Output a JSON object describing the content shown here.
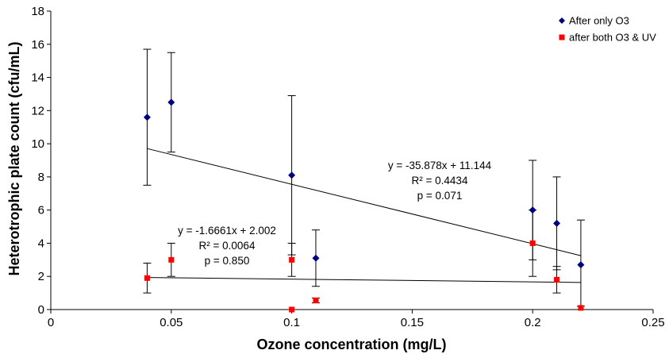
{
  "chart_data": {
    "type": "scatter",
    "xlabel": "Ozone concentration (mg/L)",
    "ylabel": "Heterotrophic plate count (cfu/mL)",
    "xlim": [
      0,
      0.25
    ],
    "ylim": [
      0,
      18
    ],
    "x_ticks": [
      "0",
      "0.05",
      "0.1",
      "0.15",
      "0.2",
      "0.25"
    ],
    "y_ticks": [
      "0",
      "2",
      "4",
      "6",
      "8",
      "10",
      "12",
      "14",
      "16",
      "18"
    ],
    "grid": false,
    "legend_position": "top-right",
    "series": [
      {
        "name": "After only O3",
        "marker": "diamond",
        "color": "#00007f",
        "points": [
          {
            "x": 0.04,
            "y": 11.6,
            "err_low": 7.5,
            "err_high": 15.7
          },
          {
            "x": 0.05,
            "y": 12.5,
            "err_low": 9.5,
            "err_high": 15.5
          },
          {
            "x": 0.1,
            "y": 8.1,
            "err_low": 3.3,
            "err_high": 12.9
          },
          {
            "x": 0.11,
            "y": 3.1,
            "err_low": 1.4,
            "err_high": 4.8
          },
          {
            "x": 0.2,
            "y": 6.0,
            "err_low": 3.0,
            "err_high": 9.0
          },
          {
            "x": 0.21,
            "y": 5.2,
            "err_low": 2.4,
            "err_high": 8.0
          },
          {
            "x": 0.22,
            "y": 2.7,
            "err_low": 0.0,
            "err_high": 5.4
          }
        ],
        "trendline": {
          "slope": -35.878,
          "intercept": 11.144,
          "x_range": [
            0.04,
            0.22
          ]
        },
        "annotation": [
          "y = -35.878x + 11.144",
          "R² = 0.4434",
          "p = 0.071"
        ]
      },
      {
        "name": "after both O3 & UV",
        "marker": "square",
        "color": "#ff0000",
        "points": [
          {
            "x": 0.04,
            "y": 1.9,
            "err_low": 1.0,
            "err_high": 2.8
          },
          {
            "x": 0.05,
            "y": 3.0,
            "err_low": 2.0,
            "err_high": 4.0
          },
          {
            "x": 0.1,
            "y": 3.0,
            "err_low": 2.0,
            "err_high": 4.0
          },
          {
            "x": 0.1,
            "y": 0.0,
            "err_low": 0.0,
            "err_high": 0.0
          },
          {
            "x": 0.11,
            "y": 0.55,
            "err_low": 0.4,
            "err_high": 0.7
          },
          {
            "x": 0.2,
            "y": 4.0,
            "err_low": 2.0,
            "err_high": 6.0
          },
          {
            "x": 0.21,
            "y": 1.8,
            "err_low": 1.0,
            "err_high": 2.6
          },
          {
            "x": 0.22,
            "y": 0.1,
            "err_low": 0.0,
            "err_high": 0.2
          }
        ],
        "trendline": {
          "slope": -1.6661,
          "intercept": 2.002,
          "x_range": [
            0.04,
            0.22
          ]
        },
        "annotation": [
          "y = -1.6661x + 2.002",
          "R² = 0.0064",
          "p = 0.850"
        ]
      }
    ]
  }
}
